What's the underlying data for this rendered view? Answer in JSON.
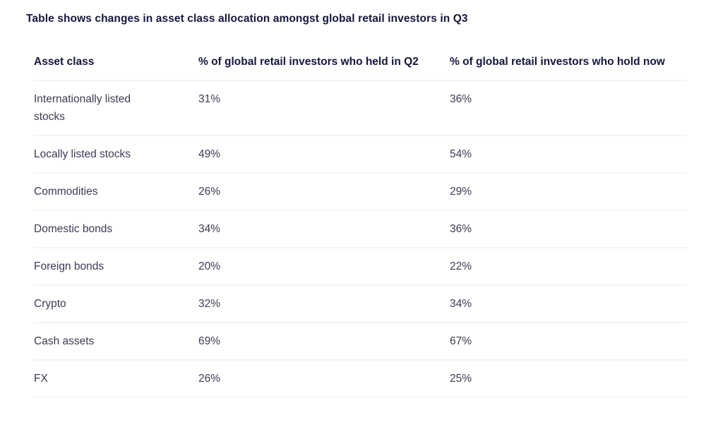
{
  "title": "Table shows changes in asset class allocation amongst global retail investors in Q3",
  "table": {
    "columns": [
      {
        "label": "Asset class"
      },
      {
        "label": "% of global retail investors who held in Q2"
      },
      {
        "label": "% of global retail investors who hold now"
      }
    ],
    "rows": [
      {
        "asset_class": "Internationally listed stocks",
        "held_q2": "31%",
        "hold_now": "36%"
      },
      {
        "asset_class": "Locally listed stocks",
        "held_q2": "49%",
        "hold_now": "54%"
      },
      {
        "asset_class": "Commodities",
        "held_q2": "26%",
        "hold_now": "29%"
      },
      {
        "asset_class": "Domestic bonds",
        "held_q2": "34%",
        "hold_now": "36%"
      },
      {
        "asset_class": "Foreign bonds",
        "held_q2": "20%",
        "hold_now": "22%"
      },
      {
        "asset_class": "Crypto",
        "held_q2": "32%",
        "hold_now": "34%"
      },
      {
        "asset_class": "Cash assets",
        "held_q2": "69%",
        "hold_now": "67%"
      },
      {
        "asset_class": "FX",
        "held_q2": "26%",
        "hold_now": "25%"
      }
    ]
  },
  "colors": {
    "heading_text": "#16163e",
    "body_text": "#3b3b54",
    "divider": "#f4f4f6",
    "background": "#ffffff"
  },
  "chart_data": {
    "type": "table",
    "title": "Table shows changes in asset class allocation amongst global retail investors in Q3",
    "columns": [
      "Asset class",
      "% of global retail investors who held in Q2",
      "% of global retail investors who hold now"
    ],
    "rows": [
      [
        "Internationally listed stocks",
        "31%",
        "36%"
      ],
      [
        "Locally listed stocks",
        "49%",
        "54%"
      ],
      [
        "Commodities",
        "26%",
        "29%"
      ],
      [
        "Domestic bonds",
        "34%",
        "36%"
      ],
      [
        "Foreign bonds",
        "20%",
        "22%"
      ],
      [
        "Crypto",
        "32%",
        "34%"
      ],
      [
        "Cash assets",
        "69%",
        "67%"
      ],
      [
        "FX",
        "26%",
        "25%"
      ]
    ]
  }
}
